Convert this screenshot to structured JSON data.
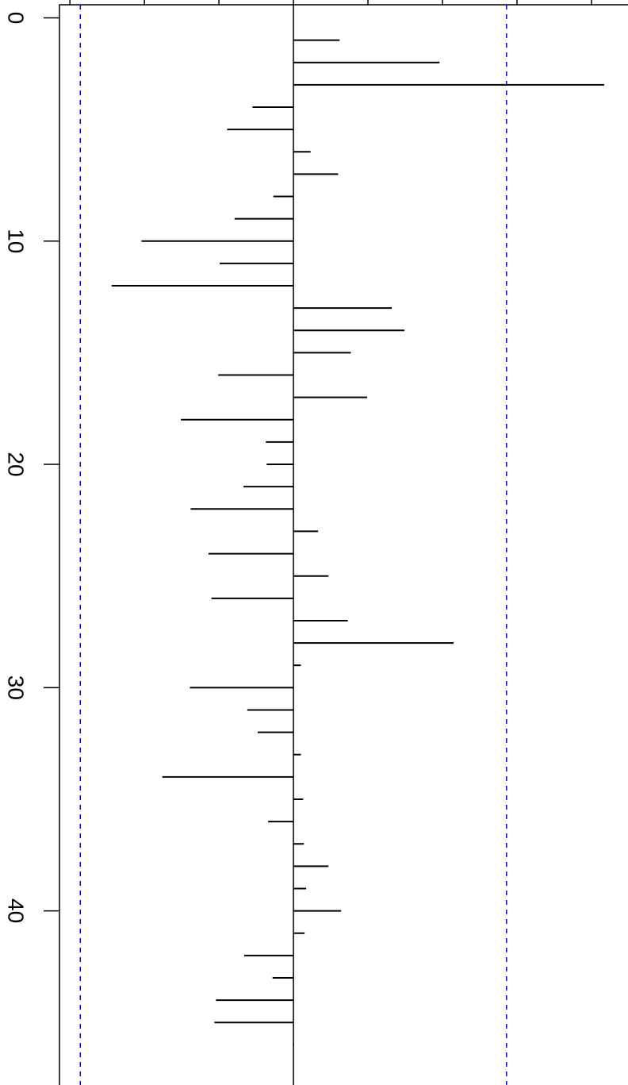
{
  "chart_data": {
    "type": "pacf",
    "x": [
      1,
      2,
      3,
      4,
      5,
      6,
      7,
      8,
      9,
      10,
      11,
      12,
      13,
      14,
      15,
      16,
      17,
      18,
      19,
      20,
      21,
      22,
      23,
      24,
      25,
      26,
      27,
      28,
      29,
      30,
      31,
      32,
      33,
      34,
      35,
      36,
      37,
      38,
      39,
      40,
      41,
      42,
      43,
      44,
      45,
      46
    ],
    "values": [
      0.062,
      0.196,
      0.417,
      -0.055,
      -0.089,
      0.023,
      0.06,
      -0.027,
      -0.079,
      -0.204,
      -0.099,
      -0.244,
      0.132,
      0.149,
      0.077,
      -0.101,
      0.099,
      -0.151,
      -0.037,
      -0.036,
      -0.067,
      -0.138,
      0.033,
      -0.114,
      0.047,
      -0.11,
      0.073,
      0.215,
      0.01,
      -0.139,
      -0.062,
      -0.048,
      0.01,
      -0.176,
      0.013,
      -0.034,
      0.014,
      0.047,
      0.017,
      0.064,
      0.015,
      -0.066,
      -0.028,
      -0.104,
      -0.106,
      0.001
    ],
    "color": "#000000",
    "ci": [
      -0.286,
      0.286
    ],
    "ci_color": "#0000ff",
    "xlim": [
      -0.8,
      47.8
    ],
    "xticks": [
      0,
      10,
      20,
      30,
      40
    ],
    "ylim": [
      -0.314,
      0.449
    ],
    "yticks": [
      -0.3,
      -0.2,
      -0.1,
      0,
      0.1,
      0.2,
      0.3,
      0.4
    ]
  }
}
